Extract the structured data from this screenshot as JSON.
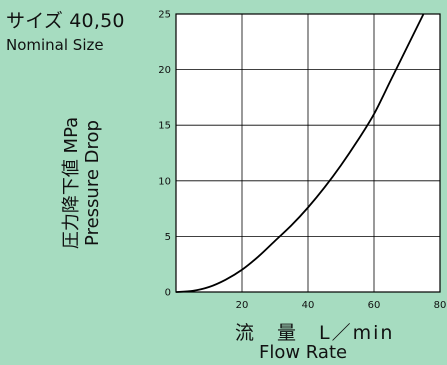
{
  "heading": {
    "size_title": "サイズ 40,50",
    "size_subtitle": "Nominal Size"
  },
  "chart_data": {
    "type": "line",
    "title": "",
    "ylabel_jp": "圧力降下値 MPa",
    "ylabel_en": "Pressure Drop",
    "xlabel_jp": "流　量　L／min",
    "xlabel_en": "Flow Rate",
    "xlim": [
      0,
      80
    ],
    "ylim": [
      0,
      25
    ],
    "x_ticks": [
      20,
      40,
      60,
      80
    ],
    "y_ticks": [
      0,
      5,
      10,
      15,
      20,
      25
    ],
    "grid": true,
    "series": [
      {
        "x": [
          0,
          5,
          10,
          15,
          20,
          25,
          30,
          35,
          40,
          45,
          50,
          55,
          60,
          65,
          70,
          75
        ],
        "y": [
          0,
          0.1,
          0.45,
          1.1,
          2.0,
          3.2,
          4.6,
          6.0,
          7.6,
          9.4,
          11.4,
          13.6,
          16.0,
          19.0,
          22.0,
          25.0
        ]
      }
    ],
    "colors": {
      "line": "#000000",
      "plot_bg": "#ffffff",
      "page_bg": "#a6dcc0"
    }
  }
}
